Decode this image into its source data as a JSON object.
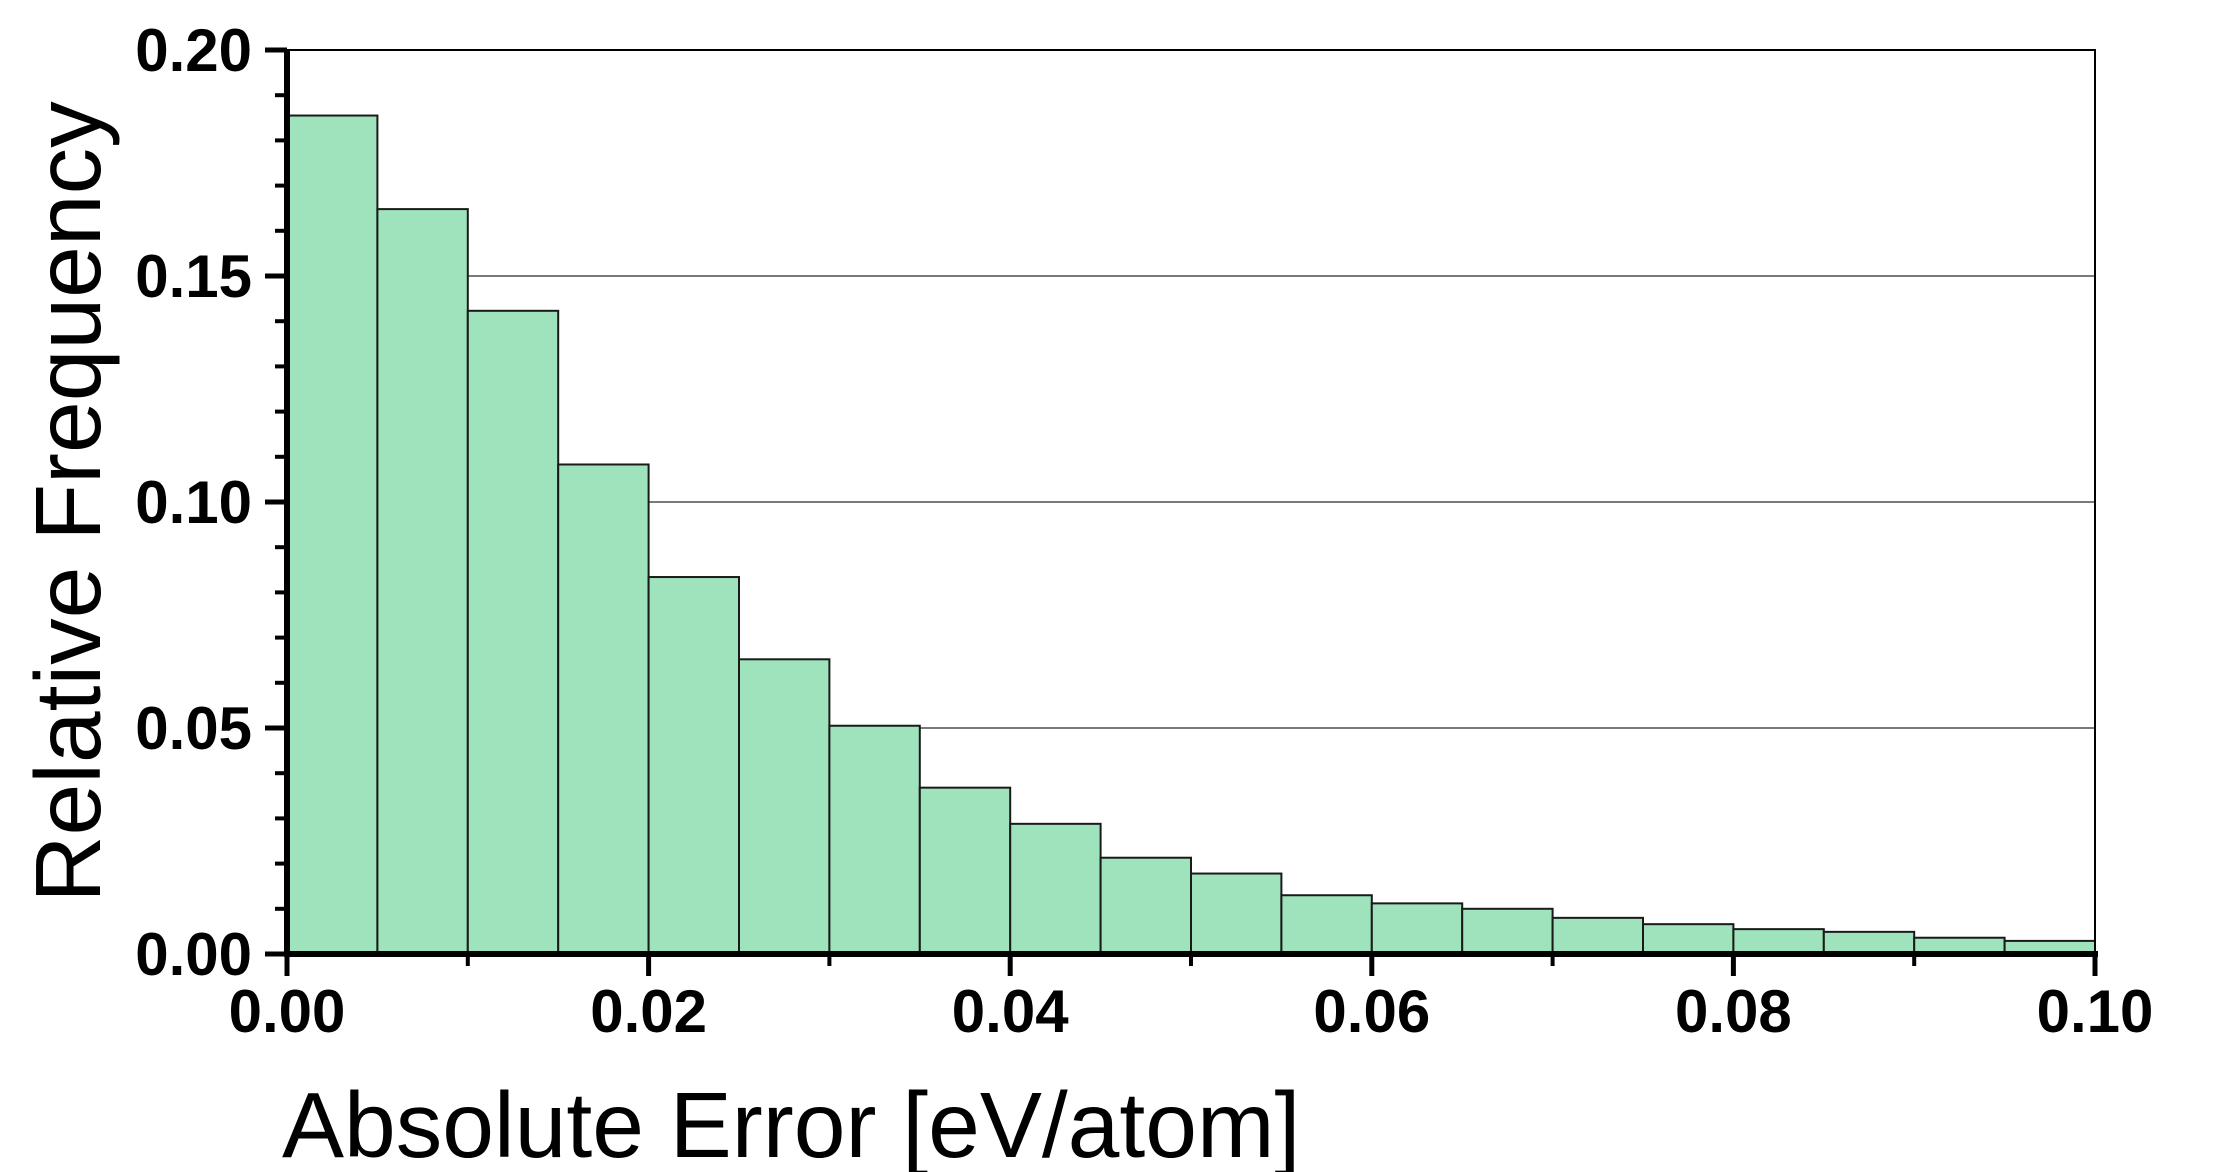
{
  "chart_data": {
    "type": "bar",
    "subtype": "histogram",
    "title": "",
    "xlabel": "Absolute Error [eV/atom]",
    "ylabel": "Relative Frequency",
    "xlim": [
      0,
      0.1
    ],
    "ylim": [
      0,
      0.2
    ],
    "x_ticks": [
      "0.00",
      "0.02",
      "0.04",
      "0.06",
      "0.08",
      "0.10"
    ],
    "y_ticks": [
      "0.00",
      "0.05",
      "0.10",
      "0.15",
      "0.20"
    ],
    "grid": "horizontal major gridlines",
    "bar_color": "#9ee3bb",
    "bar_edge_color": "#1a1a1a",
    "bin_width": 0.005,
    "bin_edges": [
      0,
      0.005,
      0.01,
      0.015,
      0.02,
      0.025,
      0.03,
      0.035,
      0.04,
      0.045,
      0.05,
      0.055,
      0.06,
      0.065,
      0.07,
      0.075,
      0.08,
      0.085,
      0.09,
      0.095,
      0.1
    ],
    "values": [
      0.1855,
      0.1648,
      0.1423,
      0.1083,
      0.0834,
      0.0652,
      0.0505,
      0.0368,
      0.0288,
      0.0213,
      0.0178,
      0.013,
      0.0112,
      0.01,
      0.008,
      0.0066,
      0.0055,
      0.0049,
      0.0036,
      0.0029
    ]
  }
}
